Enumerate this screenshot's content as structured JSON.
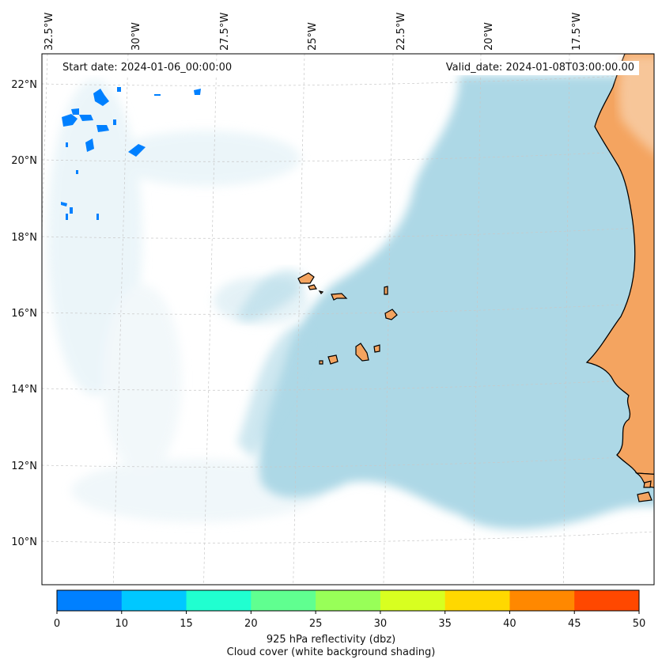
{
  "header": {
    "start_date": "Start date: 2024-01-06_00:00:00",
    "valid_date": "Valid_date: 2024-01-08T03:00:00.00"
  },
  "map": {
    "longitude_labels": [
      "32.5°W",
      "30°W",
      "27.5°W",
      "25°W",
      "22.5°W",
      "20°W",
      "17.5°W"
    ],
    "latitude_labels": [
      "22°N",
      "20°N",
      "18°N",
      "16°N",
      "14°N",
      "12°N",
      "10°N"
    ],
    "colors": {
      "ocean_cloud": "#add8e6",
      "land": "#f4a460",
      "coastline": "#000000",
      "gridline": "#c8c8c8"
    },
    "features": {
      "islands": "Cape Verde islands",
      "coast": "West African coast"
    }
  },
  "colorbar": {
    "tick_labels": [
      "0",
      "10",
      "15",
      "20",
      "25",
      "30",
      "35",
      "40",
      "45",
      "50"
    ],
    "colors": [
      "#0080ff",
      "#00c8ff",
      "#20ffd0",
      "#60ff90",
      "#98ff58",
      "#d8ff20",
      "#ffd800",
      "#ff8800",
      "#ff4800"
    ],
    "title_line1": "925 hPa reflectivity (dbz)",
    "title_line2": "Cloud cover (white background shading)"
  }
}
